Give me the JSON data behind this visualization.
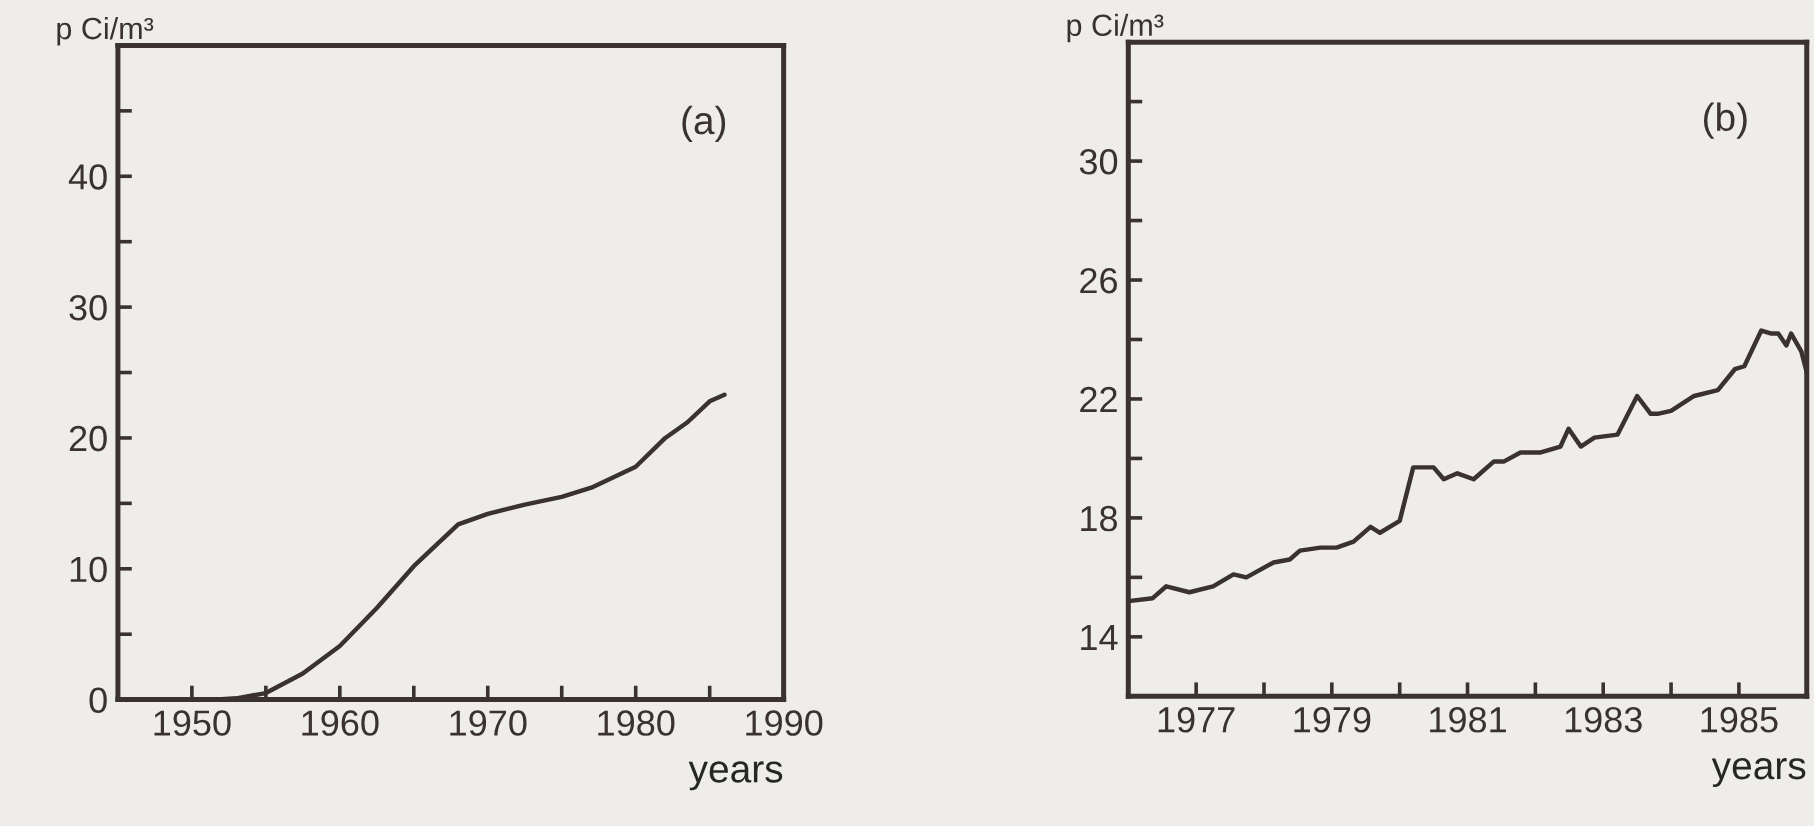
{
  "chart_data": [
    {
      "type": "line",
      "ylabel": "p Ci/m³",
      "xlabel": "years",
      "annotations": [
        "(a)"
      ],
      "color": "#3a3232",
      "x": [
        1951.5,
        1953,
        1955,
        1957.5,
        1960,
        1962.5,
        1965,
        1968,
        1970,
        1972.5,
        1975,
        1977,
        1980,
        1982,
        1983.5,
        1985,
        1986
      ],
      "values": [
        0,
        0.1,
        0.5,
        2,
        4.1,
        7,
        10.2,
        13.4,
        14.2,
        14.9,
        15.5,
        16.2,
        17.8,
        20,
        21.2,
        22.8,
        23.3
      ],
      "xlim": [
        1945,
        1990
      ],
      "xticks": [
        1950,
        {
          "value": 1955,
          "label": null
        },
        1960,
        {
          "value": 1965,
          "label": null
        },
        1970,
        {
          "value": 1975,
          "label": null
        },
        1980,
        {
          "value": 1985,
          "label": null
        },
        1990
      ],
      "ylim": [
        0,
        50
      ],
      "yticks": [
        0,
        {
          "value": 5,
          "label": null
        },
        10,
        {
          "value": 15,
          "label": null
        },
        20,
        {
          "value": 25,
          "label": null
        },
        30,
        {
          "value": 35,
          "label": null
        },
        40,
        {
          "value": 45,
          "label": null
        }
      ],
      "grid": false,
      "legend": false
    },
    {
      "type": "line",
      "ylabel": "p Ci/m³",
      "xlabel": "years",
      "annotations": [
        "(b)"
      ],
      "color": "#3a3232",
      "x": [
        1976.0,
        1976.36,
        1976.56,
        1976.9,
        1977.25,
        1977.55,
        1977.74,
        1978.14,
        1978.38,
        1978.53,
        1978.83,
        1979.07,
        1979.32,
        1979.57,
        1979.71,
        1980.0,
        1980.2,
        1980.5,
        1980.65,
        1980.85,
        1981.09,
        1981.39,
        1981.54,
        1981.78,
        1982.08,
        1982.37,
        1982.49,
        1982.67,
        1982.87,
        1983.21,
        1983.5,
        1983.7,
        1983.8,
        1984.0,
        1984.34,
        1984.69,
        1984.94,
        1985.08,
        1985.33,
        1985.48,
        1985.58,
        1985.7,
        1985.77,
        1985.92,
        1986.0
      ],
      "values": [
        15.2,
        15.3,
        15.7,
        15.5,
        15.7,
        16.1,
        16.0,
        16.5,
        16.6,
        16.9,
        17.0,
        17.0,
        17.2,
        17.7,
        17.5,
        17.9,
        19.7,
        19.7,
        19.3,
        19.5,
        19.3,
        19.9,
        19.9,
        20.2,
        20.2,
        20.4,
        21.0,
        20.4,
        20.7,
        20.8,
        22.1,
        21.5,
        21.5,
        21.6,
        22.1,
        22.3,
        23.0,
        23.1,
        24.3,
        24.2,
        24.2,
        23.8,
        24.2,
        23.6,
        22.9
      ],
      "xlim": [
        1976,
        1986
      ],
      "xticks": [
        {
          "value": 1976,
          "label": null
        },
        1977,
        {
          "value": 1978,
          "label": null
        },
        1979,
        {
          "value": 1980,
          "label": null
        },
        1981,
        {
          "value": 1982,
          "label": null
        },
        1983,
        {
          "value": 1984,
          "label": null
        },
        1985
      ],
      "ylim": [
        12,
        34
      ],
      "yticks": [
        14,
        {
          "value": 16,
          "label": null
        },
        18,
        {
          "value": 20,
          "label": null
        },
        22,
        {
          "value": 24,
          "label": null
        },
        26,
        {
          "value": 28,
          "label": null
        },
        30,
        {
          "value": 32,
          "label": null
        }
      ],
      "grid": false,
      "legend": false
    }
  ]
}
